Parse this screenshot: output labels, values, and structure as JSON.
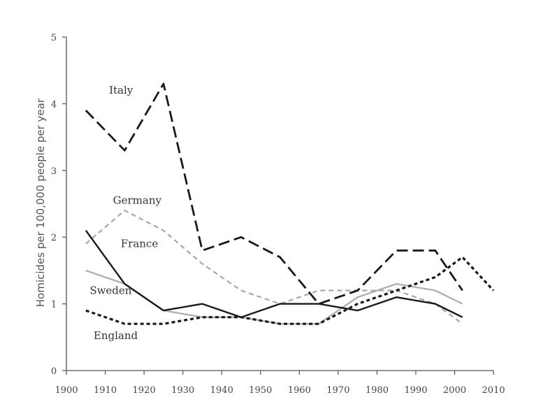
{
  "chart_data": {
    "type": "line",
    "title": "",
    "xlabel": "",
    "ylabel": "Homicides per 100,000 people per year",
    "xlim": [
      1900,
      2010
    ],
    "ylim": [
      0,
      5
    ],
    "x_ticks": [
      "1900",
      "1910",
      "1920",
      "1930",
      "1940",
      "1950",
      "1960",
      "1970",
      "1980",
      "1990",
      "2000",
      "2010"
    ],
    "y_ticks": [
      "0",
      "1",
      "2",
      "3",
      "4",
      "5"
    ],
    "grid": false,
    "legend": "inline labels",
    "series": [
      {
        "name": "Italy",
        "style": "long-dash",
        "color": "#1a1a1a",
        "x": [
          1905,
          1915,
          1925,
          1935,
          1945,
          1955,
          1965,
          1975,
          1985,
          1995,
          2002
        ],
        "y": [
          3.9,
          3.3,
          4.3,
          1.8,
          2.0,
          1.7,
          1.0,
          1.2,
          1.8,
          1.8,
          1.2
        ]
      },
      {
        "name": "Germany",
        "style": "short-dash",
        "color": "#a8a8a8",
        "x": [
          1905,
          1915,
          1925,
          1935,
          1945,
          1955,
          1965,
          1975,
          1985,
          1995,
          2002
        ],
        "y": [
          1.9,
          2.4,
          2.1,
          1.6,
          1.2,
          1.0,
          1.2,
          1.2,
          1.2,
          1.0,
          0.7
        ]
      },
      {
        "name": "France",
        "style": "solid",
        "color": "#1a1a1a",
        "x": [
          1905,
          1915,
          1925,
          1935,
          1945,
          1955,
          1965,
          1975,
          1985,
          1995,
          2002
        ],
        "y": [
          2.1,
          1.3,
          0.9,
          1.0,
          0.8,
          1.0,
          1.0,
          0.9,
          1.1,
          1.0,
          0.8
        ]
      },
      {
        "name": "Sweden",
        "style": "solid",
        "color": "#b0b0b0",
        "x": [
          1905,
          1915,
          1925,
          1935,
          1945,
          1955,
          1965,
          1975,
          1985,
          1995,
          2002
        ],
        "y": [
          1.5,
          1.3,
          0.9,
          0.8,
          0.8,
          0.7,
          0.7,
          1.1,
          1.3,
          1.2,
          1.0
        ]
      },
      {
        "name": "England",
        "style": "dotted",
        "color": "#1a1a1a",
        "x": [
          1905,
          1915,
          1925,
          1935,
          1945,
          1955,
          1965,
          1975,
          1985,
          1995,
          2002,
          2010
        ],
        "y": [
          0.9,
          0.7,
          0.7,
          0.8,
          0.8,
          0.7,
          0.7,
          1.0,
          1.2,
          1.4,
          1.7,
          1.2
        ]
      }
    ]
  }
}
